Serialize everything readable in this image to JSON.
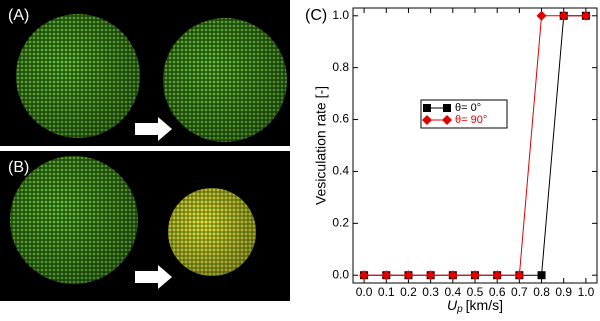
{
  "panel_labels": [
    "(A)",
    "(B)"
  ],
  "chart_data": {
    "type": "line",
    "panel_label": "(C)",
    "xlabel": {
      "symbol": "U",
      "subscript": "p",
      "unit": "[km/s]"
    },
    "ylabel": "Vesiculation rate [-]",
    "x": [
      0,
      0.1,
      0.2,
      0.3,
      0.4,
      0.5,
      0.6,
      0.7,
      0.8,
      0.9,
      1.0
    ],
    "series": [
      {
        "name": "θ= 0°",
        "color": "#000000",
        "marker": "square",
        "values": [
          0,
          0,
          0,
          0,
          0,
          0,
          0,
          0,
          0,
          1,
          1
        ]
      },
      {
        "name": "θ= 90°",
        "color": "#e00000",
        "marker": "diamond",
        "values": [
          0,
          0,
          0,
          0,
          0,
          0,
          0,
          0,
          1,
          1,
          1
        ]
      }
    ],
    "xlim": [
      -0.05,
      1.05
    ],
    "xticks": [
      {
        "value": 0,
        "label": "0.0"
      },
      0.1,
      0.2,
      0.3,
      0.4,
      0.5,
      0.6,
      0.7,
      0.8,
      0.9,
      {
        "value": 1,
        "label": "1.0"
      }
    ],
    "ylim": [
      -0.03,
      1.03
    ],
    "yticks": [
      {
        "value": 0,
        "label": "0.0"
      },
      0.2,
      0.4,
      0.6,
      0.8,
      {
        "value": 1,
        "label": "1.0"
      }
    ],
    "grid": false,
    "legend": "center"
  }
}
